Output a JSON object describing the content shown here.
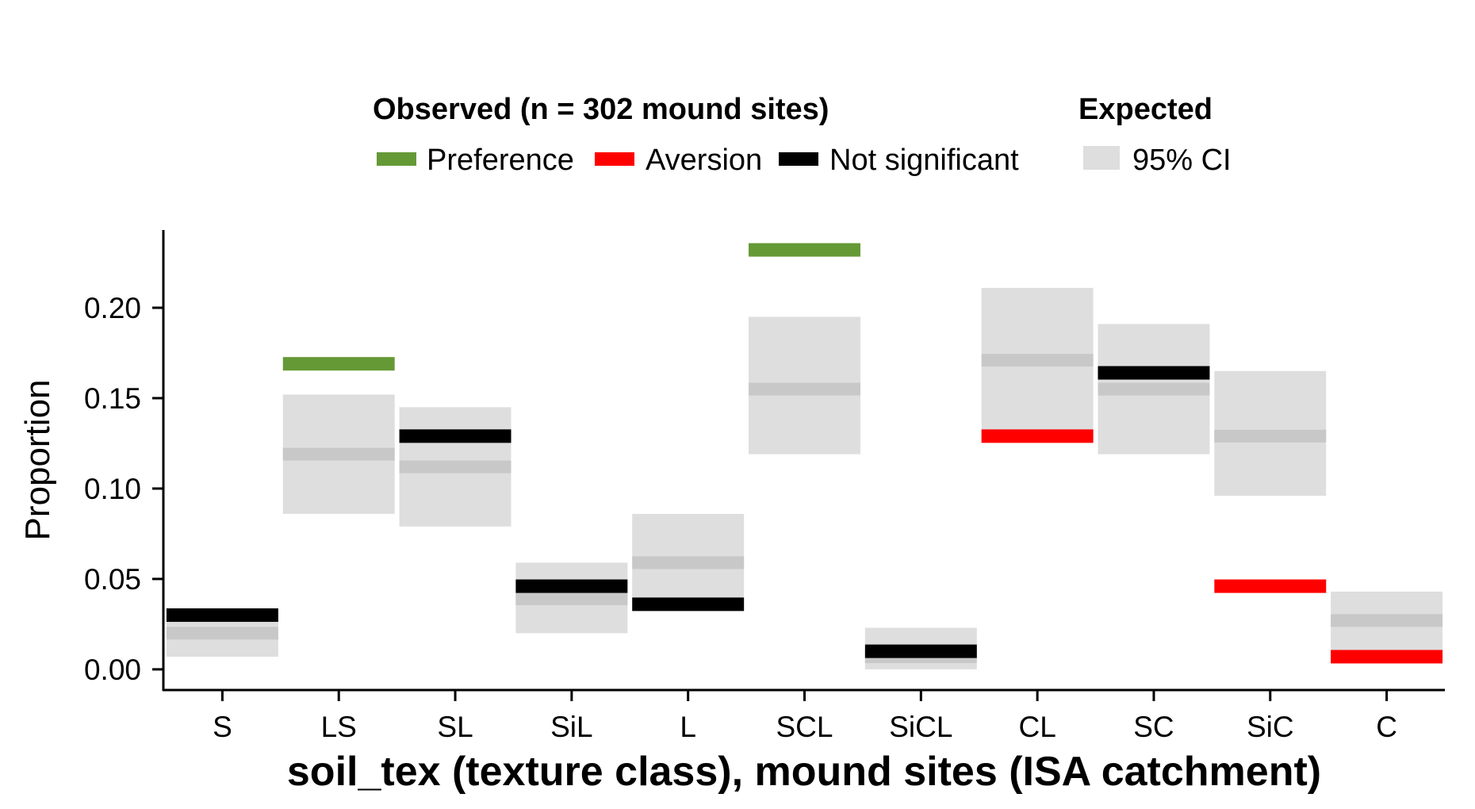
{
  "chart_data": {
    "type": "bar",
    "xlabel": "soil_tex (texture class), mound sites (ISA catchment)",
    "ylabel": "Proportion",
    "ylim": [
      -0.011,
      0.243
    ],
    "yticks": [
      "0.00",
      "0.05",
      "0.10",
      "0.15",
      "0.20"
    ],
    "ytick_values": [
      0.0,
      0.05,
      0.1,
      0.15,
      0.2
    ],
    "grid": false,
    "legend_placement": "top",
    "legend": {
      "observed_title": "Observed (n = 302 mound sites)",
      "observed_items": [
        {
          "key": "preference",
          "label": "Preference",
          "color": "#659936"
        },
        {
          "key": "aversion",
          "label": "Aversion",
          "color": "#ff0000"
        },
        {
          "key": "ns",
          "label": "Not significant",
          "color": "#000000"
        }
      ],
      "expected_title": "Expected",
      "expected_item": {
        "label": "95% CI",
        "color": "#dedede"
      }
    },
    "colors": {
      "preference": "#659936",
      "aversion": "#ff0000",
      "ns": "#000000",
      "ci_band": "#dedede",
      "expected_line": "#c8c8c8"
    },
    "categories": [
      "S",
      "LS",
      "SL",
      "SiL",
      "L",
      "SCL",
      "SiCL",
      "CL",
      "SC",
      "SiC",
      "C"
    ],
    "observed": [
      0.03,
      0.169,
      0.129,
      0.046,
      0.036,
      0.232,
      0.01,
      0.129,
      0.164,
      0.046,
      0.007
    ],
    "observed_status": [
      "ns",
      "preference",
      "ns",
      "ns",
      "ns",
      "preference",
      "ns",
      "aversion",
      "ns",
      "aversion",
      "aversion"
    ],
    "expected": [
      0.02,
      0.119,
      0.112,
      0.039,
      0.059,
      0.155,
      0.007,
      0.171,
      0.155,
      0.129,
      0.027
    ],
    "ci_low": [
      0.007,
      0.086,
      0.079,
      0.02,
      0.033,
      0.119,
      0.0,
      0.129,
      0.119,
      0.096,
      0.007
    ],
    "ci_high": [
      0.03,
      0.152,
      0.145,
      0.059,
      0.086,
      0.195,
      0.023,
      0.211,
      0.191,
      0.165,
      0.043
    ]
  }
}
